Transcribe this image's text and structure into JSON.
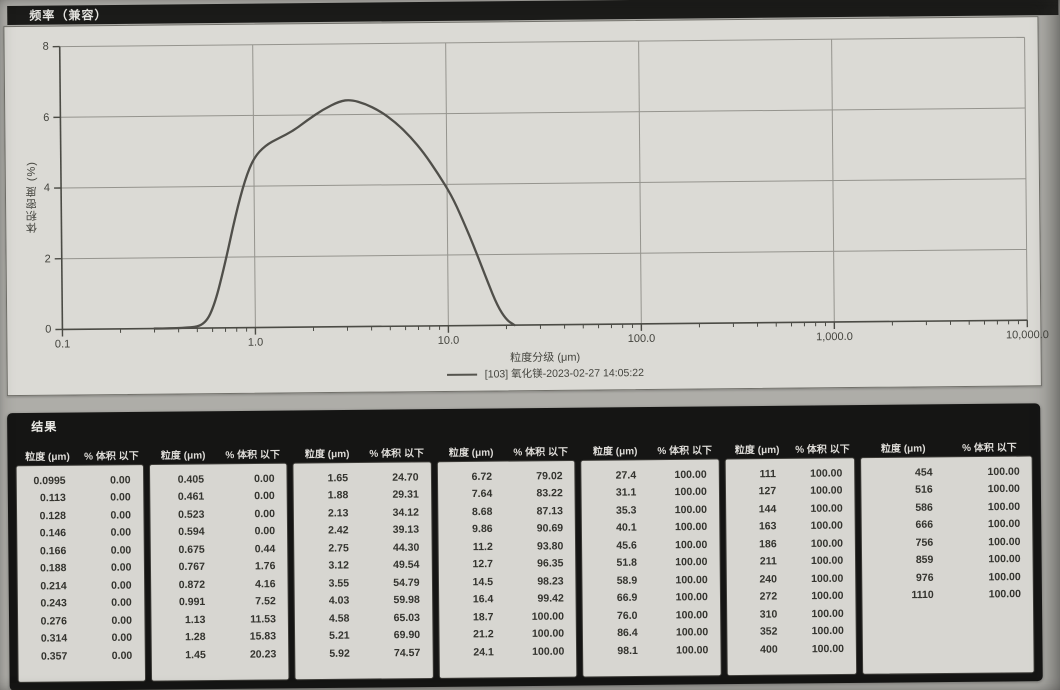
{
  "title_bar": {
    "label": "频率（兼容）"
  },
  "chart_data": {
    "type": "line",
    "title": "频率（兼容）",
    "xlabel": "粒度分级 (μm)",
    "ylabel": "体积密度 (%)",
    "x_scale": "log",
    "xlim": [
      0.1,
      10000
    ],
    "ylim": [
      0,
      8
    ],
    "grid": true,
    "legend_position": "bottom",
    "x_ticks": {
      "values": [
        0.1,
        1,
        10,
        100,
        1000,
        10000
      ],
      "labels": [
        "0.1",
        "1.0",
        "10.0",
        "100.0",
        "1,000.0",
        "10,000.0"
      ]
    },
    "y_ticks": [
      0,
      2,
      4,
      6,
      8
    ],
    "series": [
      {
        "name": "[103] 氧化镁-2023-02-27 14:05:22",
        "x": [
          0.3,
          0.45,
          0.55,
          0.62,
          0.7,
          0.8,
          0.9,
          1.0,
          1.15,
          1.35,
          1.6,
          1.9,
          2.3,
          2.8,
          3.2,
          3.8,
          4.5,
          5.5,
          6.5,
          7.6,
          9.0,
          10.5,
          12.0,
          14.0,
          16.0,
          18.0,
          20.0,
          22.0
        ],
        "y": [
          0,
          0,
          0.1,
          0.7,
          1.8,
          3.2,
          4.2,
          4.8,
          5.15,
          5.35,
          5.55,
          5.85,
          6.15,
          6.38,
          6.42,
          6.3,
          6.1,
          5.75,
          5.35,
          4.9,
          4.3,
          3.7,
          3.0,
          2.1,
          1.25,
          0.55,
          0.15,
          0
        ]
      }
    ]
  },
  "results": {
    "section_label": "结果",
    "col_headers": {
      "size": "粒度 (μm)",
      "pct": "% 体积 以下"
    },
    "columns": [
      [
        [
          "0.0995",
          "0.00"
        ],
        [
          "0.113",
          "0.00"
        ],
        [
          "0.128",
          "0.00"
        ],
        [
          "0.146",
          "0.00"
        ],
        [
          "0.166",
          "0.00"
        ],
        [
          "0.188",
          "0.00"
        ],
        [
          "0.214",
          "0.00"
        ],
        [
          "0.243",
          "0.00"
        ],
        [
          "0.276",
          "0.00"
        ],
        [
          "0.314",
          "0.00"
        ],
        [
          "0.357",
          "0.00"
        ]
      ],
      [
        [
          "0.405",
          "0.00"
        ],
        [
          "0.461",
          "0.00"
        ],
        [
          "0.523",
          "0.00"
        ],
        [
          "0.594",
          "0.00"
        ],
        [
          "0.675",
          "0.44"
        ],
        [
          "0.767",
          "1.76"
        ],
        [
          "0.872",
          "4.16"
        ],
        [
          "0.991",
          "7.52"
        ],
        [
          "1.13",
          "11.53"
        ],
        [
          "1.28",
          "15.83"
        ],
        [
          "1.45",
          "20.23"
        ]
      ],
      [
        [
          "1.65",
          "24.70"
        ],
        [
          "1.88",
          "29.31"
        ],
        [
          "2.13",
          "34.12"
        ],
        [
          "2.42",
          "39.13"
        ],
        [
          "2.75",
          "44.30"
        ],
        [
          "3.12",
          "49.54"
        ],
        [
          "3.55",
          "54.79"
        ],
        [
          "4.03",
          "59.98"
        ],
        [
          "4.58",
          "65.03"
        ],
        [
          "5.21",
          "69.90"
        ],
        [
          "5.92",
          "74.57"
        ]
      ],
      [
        [
          "6.72",
          "79.02"
        ],
        [
          "7.64",
          "83.22"
        ],
        [
          "8.68",
          "87.13"
        ],
        [
          "9.86",
          "90.69"
        ],
        [
          "11.2",
          "93.80"
        ],
        [
          "12.7",
          "96.35"
        ],
        [
          "14.5",
          "98.23"
        ],
        [
          "16.4",
          "99.42"
        ],
        [
          "18.7",
          "100.00"
        ],
        [
          "21.2",
          "100.00"
        ],
        [
          "24.1",
          "100.00"
        ]
      ],
      [
        [
          "27.4",
          "100.00"
        ],
        [
          "31.1",
          "100.00"
        ],
        [
          "35.3",
          "100.00"
        ],
        [
          "40.1",
          "100.00"
        ],
        [
          "45.6",
          "100.00"
        ],
        [
          "51.8",
          "100.00"
        ],
        [
          "58.9",
          "100.00"
        ],
        [
          "66.9",
          "100.00"
        ],
        [
          "76.0",
          "100.00"
        ],
        [
          "86.4",
          "100.00"
        ],
        [
          "98.1",
          "100.00"
        ]
      ],
      [
        [
          "111",
          "100.00"
        ],
        [
          "127",
          "100.00"
        ],
        [
          "144",
          "100.00"
        ],
        [
          "163",
          "100.00"
        ],
        [
          "186",
          "100.00"
        ],
        [
          "211",
          "100.00"
        ],
        [
          "240",
          "100.00"
        ],
        [
          "272",
          "100.00"
        ],
        [
          "310",
          "100.00"
        ],
        [
          "352",
          "100.00"
        ],
        [
          "400",
          "100.00"
        ]
      ],
      [
        [
          "454",
          "100.00"
        ],
        [
          "516",
          "100.00"
        ],
        [
          "586",
          "100.00"
        ],
        [
          "666",
          "100.00"
        ],
        [
          "756",
          "100.00"
        ],
        [
          "859",
          "100.00"
        ],
        [
          "976",
          "100.00"
        ],
        [
          "1110",
          "100.00"
        ]
      ]
    ]
  }
}
